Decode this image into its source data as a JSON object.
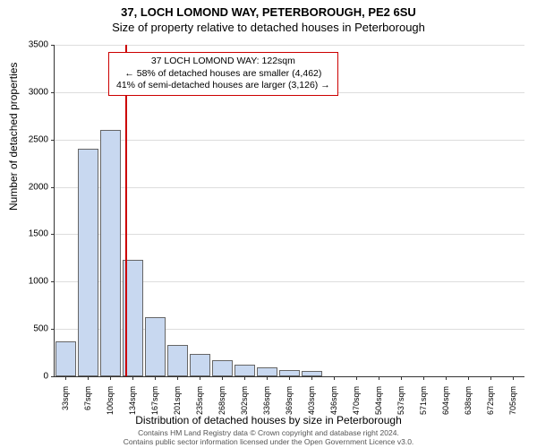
{
  "title_line1": "37, LOCH LOMOND WAY, PETERBOROUGH, PE2 6SU",
  "title_line2": "Size of property relative to detached houses in Peterborough",
  "ylabel": "Number of detached properties",
  "xlabel": "Distribution of detached houses by size in Peterborough",
  "chart": {
    "type": "bar",
    "ylim": [
      0,
      3500
    ],
    "ytick_step": 500,
    "yticks": [
      0,
      500,
      1000,
      1500,
      2000,
      2500,
      3000,
      3500
    ],
    "xlabels": [
      "33sqm",
      "67sqm",
      "100sqm",
      "134sqm",
      "167sqm",
      "201sqm",
      "235sqm",
      "268sqm",
      "302sqm",
      "336sqm",
      "369sqm",
      "403sqm",
      "436sqm",
      "470sqm",
      "504sqm",
      "537sqm",
      "571sqm",
      "604sqm",
      "638sqm",
      "672sqm",
      "705sqm"
    ],
    "values": [
      370,
      2400,
      2600,
      1230,
      620,
      330,
      240,
      170,
      120,
      95,
      70,
      55,
      0,
      0,
      0,
      0,
      0,
      0,
      0,
      0,
      0
    ],
    "bar_fill": "#c8d8f0",
    "bar_border": "#666666",
    "grid_color": "#dddddd",
    "axis_color": "#333333",
    "background_color": "#ffffff",
    "bar_width_ratio": 0.95,
    "label_fontsize": 12,
    "tick_fontsize": 10,
    "xtick_fontsize": 9
  },
  "marker": {
    "position_value": 122,
    "x_start": 33,
    "x_step": 33.5,
    "line_color": "#cc0000"
  },
  "annotation": {
    "line1": "37 LOCH LOMOND WAY: 122sqm",
    "line2": "← 58% of detached houses are smaller (4,462)",
    "line3": "41% of semi-detached houses are larger (3,126) →",
    "border_color": "#cc0000",
    "background_color": "#ffffff",
    "fontsize": 10.5
  },
  "footer": {
    "line1": "Contains HM Land Registry data © Crown copyright and database right 2024.",
    "line2": "Contains public sector information licensed under the Open Government Licence v3.0."
  }
}
